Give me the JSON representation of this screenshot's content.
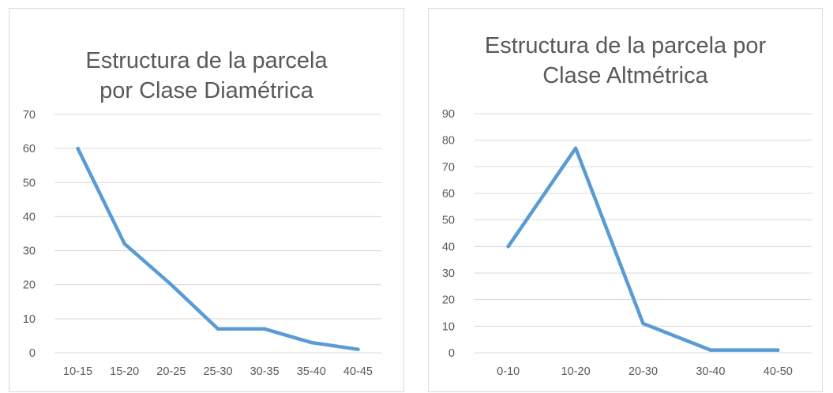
{
  "chart_data": [
    {
      "type": "line",
      "title_lines": [
        "Estructura de la parcela",
        "por Clase Diamétrica"
      ],
      "categories": [
        "10-15",
        "15-20",
        "20-25",
        "25-30",
        "30-35",
        "35-40",
        "40-45"
      ],
      "values": [
        60,
        32,
        20,
        7,
        7,
        3,
        1
      ],
      "ylim": [
        0,
        70
      ],
      "yticks": [
        0,
        10,
        20,
        30,
        40,
        50,
        60,
        70
      ],
      "grid": true,
      "line_color": "#5b9bd5",
      "gridline_color": "#d9d9d9"
    },
    {
      "type": "line",
      "title_lines": [
        "Estructura de la parcela por",
        "Clase Altmétrica"
      ],
      "categories": [
        "0-10",
        "10-20",
        "20-30",
        "30-40",
        "40-50"
      ],
      "values": [
        40,
        77,
        11,
        1,
        1
      ],
      "ylim": [
        0,
        90
      ],
      "yticks": [
        0,
        10,
        20,
        30,
        40,
        50,
        60,
        70,
        80,
        90
      ],
      "grid": true,
      "line_color": "#5b9bd5",
      "gridline_color": "#d9d9d9"
    }
  ]
}
